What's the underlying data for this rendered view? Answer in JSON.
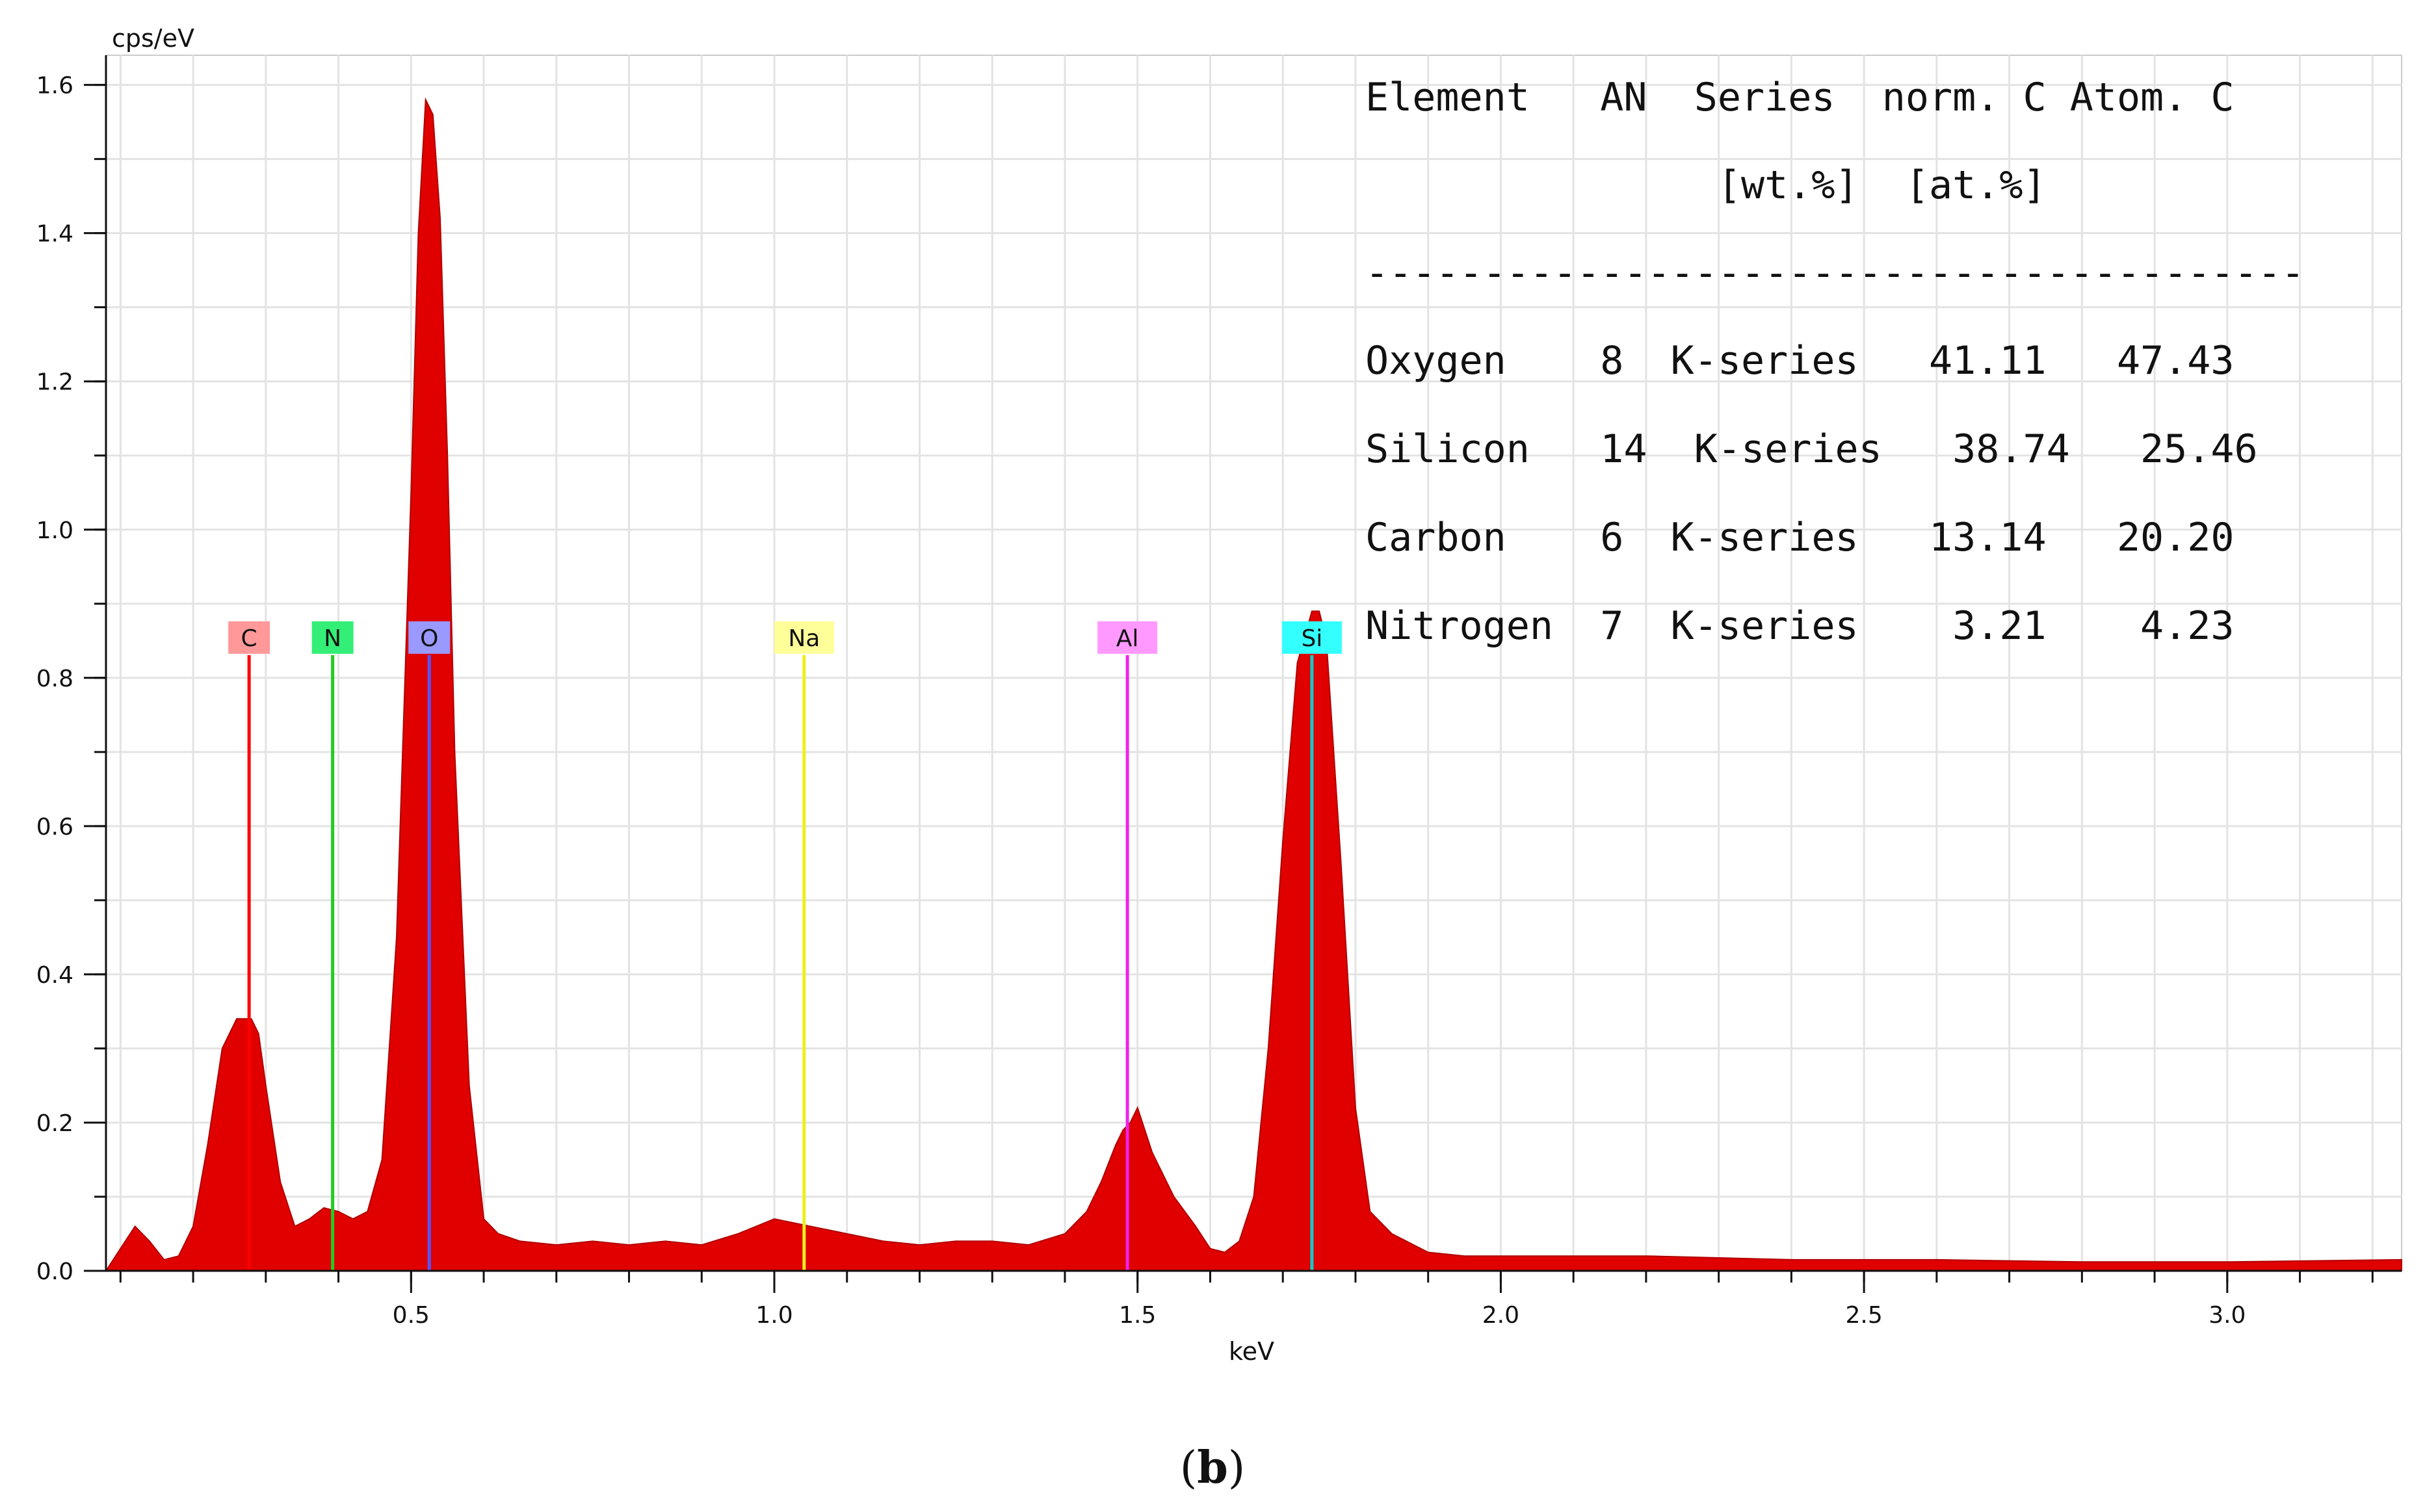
{
  "chart_data": {
    "type": "area",
    "ylabel": "cps/eV",
    "xlabel": "keV",
    "xlim": [
      0.08,
      3.24
    ],
    "ylim": [
      0,
      1.64
    ],
    "grid": true,
    "x_ticks": [
      0.5,
      1.0,
      1.5,
      2.0,
      2.5,
      3.0
    ],
    "x_tick_labels": [
      "0.5",
      "1.0",
      "1.5",
      "2.0",
      "2.5",
      "3.0"
    ],
    "y_ticks": [
      0.0,
      0.2,
      0.4,
      0.6,
      0.8,
      1.0,
      1.2,
      1.4,
      1.6
    ],
    "y_tick_labels": [
      "0.0",
      "0.2",
      "0.4",
      "0.6",
      "0.8",
      "1.0",
      "1.2",
      "1.4",
      "1.6"
    ],
    "fill_color": "#e00000",
    "series": [
      {
        "x": [
          0.08,
          0.1,
          0.12,
          0.14,
          0.16,
          0.18,
          0.2,
          0.22,
          0.24,
          0.26,
          0.28,
          0.29,
          0.3,
          0.32,
          0.34,
          0.36,
          0.38,
          0.4,
          0.42,
          0.44,
          0.46,
          0.48,
          0.5,
          0.51,
          0.52,
          0.53,
          0.54,
          0.55,
          0.56,
          0.58,
          0.6,
          0.62,
          0.65,
          0.7,
          0.75,
          0.8,
          0.85,
          0.9,
          0.95,
          1.0,
          1.05,
          1.1,
          1.15,
          1.2,
          1.25,
          1.3,
          1.35,
          1.4,
          1.43,
          1.45,
          1.47,
          1.48,
          1.49,
          1.5,
          1.52,
          1.55,
          1.58,
          1.6,
          1.62,
          1.64,
          1.66,
          1.68,
          1.7,
          1.72,
          1.74,
          1.75,
          1.76,
          1.78,
          1.8,
          1.82,
          1.85,
          1.88,
          1.9,
          1.95,
          2.0,
          2.2,
          2.4,
          2.6,
          2.8,
          3.0,
          3.24
        ],
        "y": [
          0.0,
          0.03,
          0.06,
          0.04,
          0.015,
          0.02,
          0.06,
          0.17,
          0.3,
          0.34,
          0.34,
          0.32,
          0.25,
          0.12,
          0.06,
          0.07,
          0.085,
          0.08,
          0.07,
          0.08,
          0.15,
          0.45,
          1.05,
          1.4,
          1.58,
          1.56,
          1.42,
          1.1,
          0.7,
          0.25,
          0.07,
          0.05,
          0.04,
          0.035,
          0.04,
          0.035,
          0.04,
          0.035,
          0.05,
          0.07,
          0.06,
          0.05,
          0.04,
          0.035,
          0.04,
          0.04,
          0.035,
          0.05,
          0.08,
          0.12,
          0.17,
          0.19,
          0.2,
          0.22,
          0.16,
          0.1,
          0.06,
          0.03,
          0.025,
          0.04,
          0.1,
          0.3,
          0.58,
          0.82,
          0.89,
          0.89,
          0.85,
          0.55,
          0.22,
          0.08,
          0.05,
          0.035,
          0.025,
          0.02,
          0.02,
          0.02,
          0.015,
          0.015,
          0.012,
          0.012,
          0.015
        ]
      }
    ],
    "element_lines": [
      {
        "label": "C",
        "energy": 0.277,
        "color": "#ff0000",
        "label_bg": "#ff9999"
      },
      {
        "label": "N",
        "energy": 0.392,
        "color": "#22cc22",
        "label_bg": "#33ee77"
      },
      {
        "label": "O",
        "energy": 0.525,
        "color": "#5555ff",
        "label_bg": "#9999ff"
      },
      {
        "label": "Na",
        "energy": 1.041,
        "color": "#eeee22",
        "label_bg": "#ffff99"
      },
      {
        "label": "Al",
        "energy": 1.486,
        "color": "#ee22ee",
        "label_bg": "#ff99ff"
      },
      {
        "label": "Si",
        "energy": 1.74,
        "color": "#11cccc",
        "label_bg": "#33ffff"
      }
    ],
    "label_level": 0.85,
    "table": {
      "header1": "Element   AN  Series  norm. C Atom. C",
      "header2": "               [wt.%]  [at.%]",
      "divider": "----------------------------------------",
      "rows": [
        "Oxygen    8  K-series   41.11   47.43",
        "Silicon   14  K-series   38.74   25.46",
        "Carbon    6  K-series   13.14   20.20",
        "Nitrogen  7  K-series    3.21    4.23"
      ]
    }
  },
  "caption": {
    "open": "(",
    "letter": "b",
    "close": ")"
  }
}
